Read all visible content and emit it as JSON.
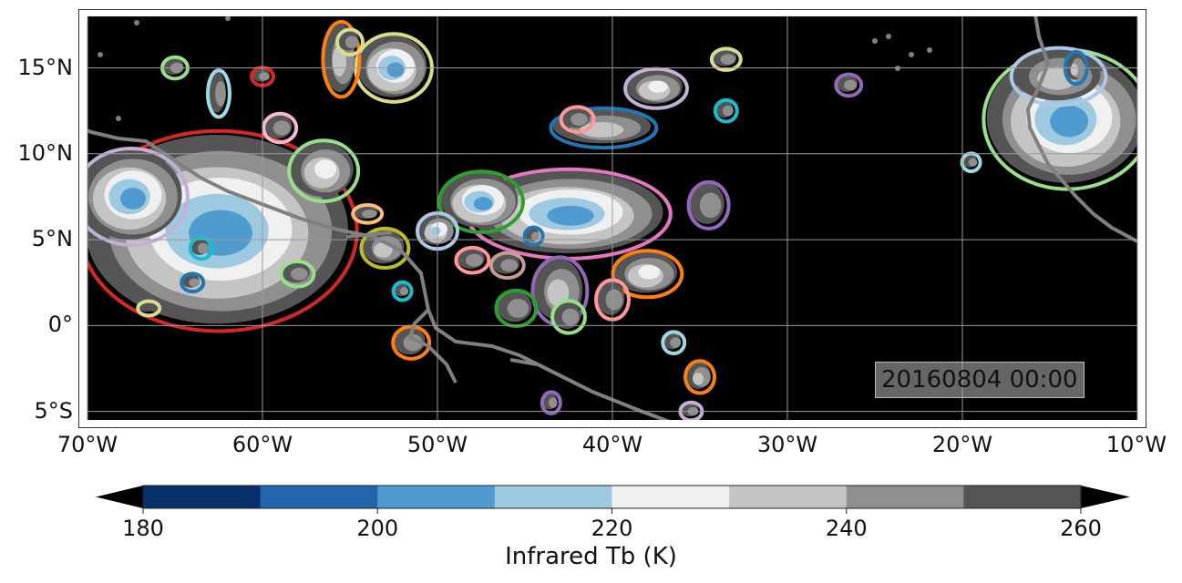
{
  "map": {
    "lon_range": [
      -70,
      -10
    ],
    "lat_range": [
      -5.5,
      18
    ],
    "lon_ticks": [
      {
        "value": -70,
        "label": "70°W"
      },
      {
        "value": -60,
        "label": "60°W"
      },
      {
        "value": -50,
        "label": "50°W"
      },
      {
        "value": -40,
        "label": "40°W"
      },
      {
        "value": -30,
        "label": "30°W"
      },
      {
        "value": -20,
        "label": "20°W"
      },
      {
        "value": -10,
        "label": "10°W"
      }
    ],
    "lat_ticks": [
      {
        "value": 15,
        "label": "15°N"
      },
      {
        "value": 10,
        "label": "10°N"
      },
      {
        "value": 5,
        "label": "5°N"
      },
      {
        "value": 0,
        "label": "0°"
      },
      {
        "value": -5,
        "label": "5°S"
      }
    ],
    "timestamp": "20160804 00:00",
    "background_color": "#000000",
    "coastline_color": "#808080",
    "gridlines": true
  },
  "colorbar": {
    "title": "Infrared Tb (K)",
    "levels": [
      180,
      190,
      200,
      210,
      220,
      230,
      240,
      250,
      260
    ],
    "colors": [
      "#08306b",
      "#2166ac",
      "#4f9bd0",
      "#9ecae1",
      "#f0f0f0",
      "#c4c4c4",
      "#8f8f8f",
      "#555555"
    ],
    "under_color": "#000000",
    "over_color": "#000000",
    "tick_values": [
      180,
      200,
      220,
      240,
      260
    ],
    "tick_labels": [
      "180",
      "200",
      "220",
      "240",
      "260"
    ],
    "extend": "both"
  },
  "storm_outline_colors": [
    "#d62728",
    "#1f77b4",
    "#2ca02c",
    "#ff7f0e",
    "#e377c2",
    "#9467bd",
    "#98df8a",
    "#aec7e8",
    "#c5b0d5",
    "#ff9896",
    "#bcbd22",
    "#dbdb8d",
    "#17becf",
    "#9edae5",
    "#8c564b",
    "#f7b6d2",
    "#ffbb78",
    "#c49c94"
  ],
  "cloud_systems": [
    {
      "lon": -62.5,
      "lat": 5.5,
      "rx": 7.5,
      "ry": 5.5,
      "core": 200,
      "outline": "#d62728"
    },
    {
      "lon": -67.5,
      "lat": 7.5,
      "rx": 3.0,
      "ry": 2.6,
      "core": 200,
      "outline": "#c5b0d5"
    },
    {
      "lon": -42.5,
      "lat": 6.5,
      "rx": 5.5,
      "ry": 2.4,
      "core": 200,
      "outline": "#e377c2"
    },
    {
      "lon": -47.5,
      "lat": 7.2,
      "rx": 2.2,
      "ry": 1.6,
      "core": 205,
      "outline": "#2ca02c"
    },
    {
      "lon": -40.5,
      "lat": 11.5,
      "rx": 2.8,
      "ry": 1.0,
      "core": 235,
      "outline": "#1f77b4"
    },
    {
      "lon": -14.0,
      "lat": 12.0,
      "rx": 4.5,
      "ry": 3.8,
      "core": 200,
      "outline": "#98df8a"
    },
    {
      "lon": -14.5,
      "lat": 14.5,
      "rx": 2.5,
      "ry": 1.5,
      "core": 230,
      "outline": "#aec7e8"
    },
    {
      "lon": -52.5,
      "lat": 15.0,
      "rx": 2.0,
      "ry": 1.8,
      "core": 205,
      "outline": "#dbdb8d"
    },
    {
      "lon": -55.5,
      "lat": 15.5,
      "rx": 0.9,
      "ry": 2.0,
      "core": 235,
      "outline": "#ff7f0e"
    },
    {
      "lon": -56.5,
      "lat": 9.0,
      "rx": 1.8,
      "ry": 1.6,
      "core": 225,
      "outline": "#98df8a"
    },
    {
      "lon": -43.0,
      "lat": 2.0,
      "rx": 1.4,
      "ry": 1.8,
      "core": 230,
      "outline": "#9467bd"
    },
    {
      "lon": -38.0,
      "lat": 3.0,
      "rx": 1.8,
      "ry": 1.2,
      "core": 225,
      "outline": "#ff7f0e"
    },
    {
      "lon": -37.5,
      "lat": 13.8,
      "rx": 1.6,
      "ry": 1.0,
      "core": 225,
      "outline": "#c5b0d5"
    },
    {
      "lon": -53.0,
      "lat": 4.5,
      "rx": 1.2,
      "ry": 1.0,
      "core": 235,
      "outline": "#bcbd22"
    },
    {
      "lon": -50.0,
      "lat": 5.5,
      "rx": 1.0,
      "ry": 0.9,
      "core": 215,
      "outline": "#aec7e8"
    },
    {
      "lon": -34.5,
      "lat": 7.0,
      "rx": 1.0,
      "ry": 1.2,
      "core": 240,
      "outline": "#9467bd"
    },
    {
      "lon": -45.5,
      "lat": 1.0,
      "rx": 1.0,
      "ry": 0.9,
      "core": 240,
      "outline": "#2ca02c"
    },
    {
      "lon": -51.5,
      "lat": -1.0,
      "rx": 0.9,
      "ry": 0.8,
      "core": 240,
      "outline": "#ff7f0e"
    },
    {
      "lon": -35.0,
      "lat": -3.0,
      "rx": 0.7,
      "ry": 0.8,
      "core": 230,
      "outline": "#ff7f0e"
    },
    {
      "lon": -42.0,
      "lat": 12.0,
      "rx": 0.8,
      "ry": 0.6,
      "core": 240,
      "outline": "#ff9896"
    },
    {
      "lon": -59.0,
      "lat": 11.5,
      "rx": 0.8,
      "ry": 0.7,
      "core": 240,
      "outline": "#f7b6d2"
    },
    {
      "lon": -55.0,
      "lat": 16.5,
      "rx": 0.6,
      "ry": 0.6,
      "core": 245,
      "outline": "#dbdb8d"
    },
    {
      "lon": -33.5,
      "lat": 15.5,
      "rx": 0.7,
      "ry": 0.5,
      "core": 245,
      "outline": "#dbdb8d"
    },
    {
      "lon": -26.5,
      "lat": 14.0,
      "rx": 0.6,
      "ry": 0.5,
      "core": 240,
      "outline": "#9467bd"
    },
    {
      "lon": -65.0,
      "lat": 15.0,
      "rx": 0.6,
      "ry": 0.5,
      "core": 240,
      "outline": "#98df8a"
    },
    {
      "lon": -62.5,
      "lat": 13.5,
      "rx": 0.5,
      "ry": 1.2,
      "core": 245,
      "outline": "#9edae5"
    },
    {
      "lon": -33.5,
      "lat": 12.5,
      "rx": 0.5,
      "ry": 0.5,
      "core": 245,
      "outline": "#17becf"
    },
    {
      "lon": -63.5,
      "lat": 4.5,
      "rx": 0.5,
      "ry": 0.5,
      "core": 240,
      "outline": "#17becf"
    },
    {
      "lon": -64.0,
      "lat": 2.5,
      "rx": 0.5,
      "ry": 0.4,
      "core": 240,
      "outline": "#1f77b4"
    },
    {
      "lon": -52.0,
      "lat": 2.0,
      "rx": 0.4,
      "ry": 0.4,
      "core": 245,
      "outline": "#17becf"
    },
    {
      "lon": -44.5,
      "lat": 5.2,
      "rx": 0.4,
      "ry": 0.4,
      "core": 240,
      "outline": "#1f77b4"
    },
    {
      "lon": -36.5,
      "lat": -1.0,
      "rx": 0.5,
      "ry": 0.5,
      "core": 245,
      "outline": "#9edae5"
    },
    {
      "lon": -42.5,
      "lat": 0.5,
      "rx": 0.8,
      "ry": 0.8,
      "core": 245,
      "outline": "#98df8a"
    },
    {
      "lon": -58.0,
      "lat": 3.0,
      "rx": 0.8,
      "ry": 0.6,
      "core": 245,
      "outline": "#98df8a"
    },
    {
      "lon": -60.0,
      "lat": 14.5,
      "rx": 0.5,
      "ry": 0.4,
      "core": 245,
      "outline": "#d62728"
    },
    {
      "lon": -54.0,
      "lat": 6.5,
      "rx": 0.7,
      "ry": 0.4,
      "core": 245,
      "outline": "#ffbb78"
    },
    {
      "lon": -48.0,
      "lat": 3.8,
      "rx": 0.8,
      "ry": 0.6,
      "core": 245,
      "outline": "#ff9896"
    },
    {
      "lon": -46.0,
      "lat": 3.5,
      "rx": 0.8,
      "ry": 0.6,
      "core": 245,
      "outline": "#c49c94"
    },
    {
      "lon": -13.5,
      "lat": 15.0,
      "rx": 0.5,
      "ry": 0.8,
      "core": 230,
      "outline": "#1f77b4"
    },
    {
      "lon": -19.5,
      "lat": 9.5,
      "rx": 0.4,
      "ry": 0.4,
      "core": 245,
      "outline": "#9edae5"
    },
    {
      "lon": -40.0,
      "lat": 1.5,
      "rx": 0.8,
      "ry": 1.0,
      "core": 240,
      "outline": "#ff9896"
    },
    {
      "lon": -66.5,
      "lat": 1.0,
      "rx": 0.5,
      "ry": 0.3,
      "core": 250,
      "outline": "#dbdb8d"
    },
    {
      "lon": -43.5,
      "lat": -4.5,
      "rx": 0.4,
      "ry": 0.5,
      "core": 245,
      "outline": "#9467bd"
    },
    {
      "lon": -35.5,
      "lat": -5.0,
      "rx": 0.5,
      "ry": 0.4,
      "core": 245,
      "outline": "#c5b0d5"
    }
  ]
}
